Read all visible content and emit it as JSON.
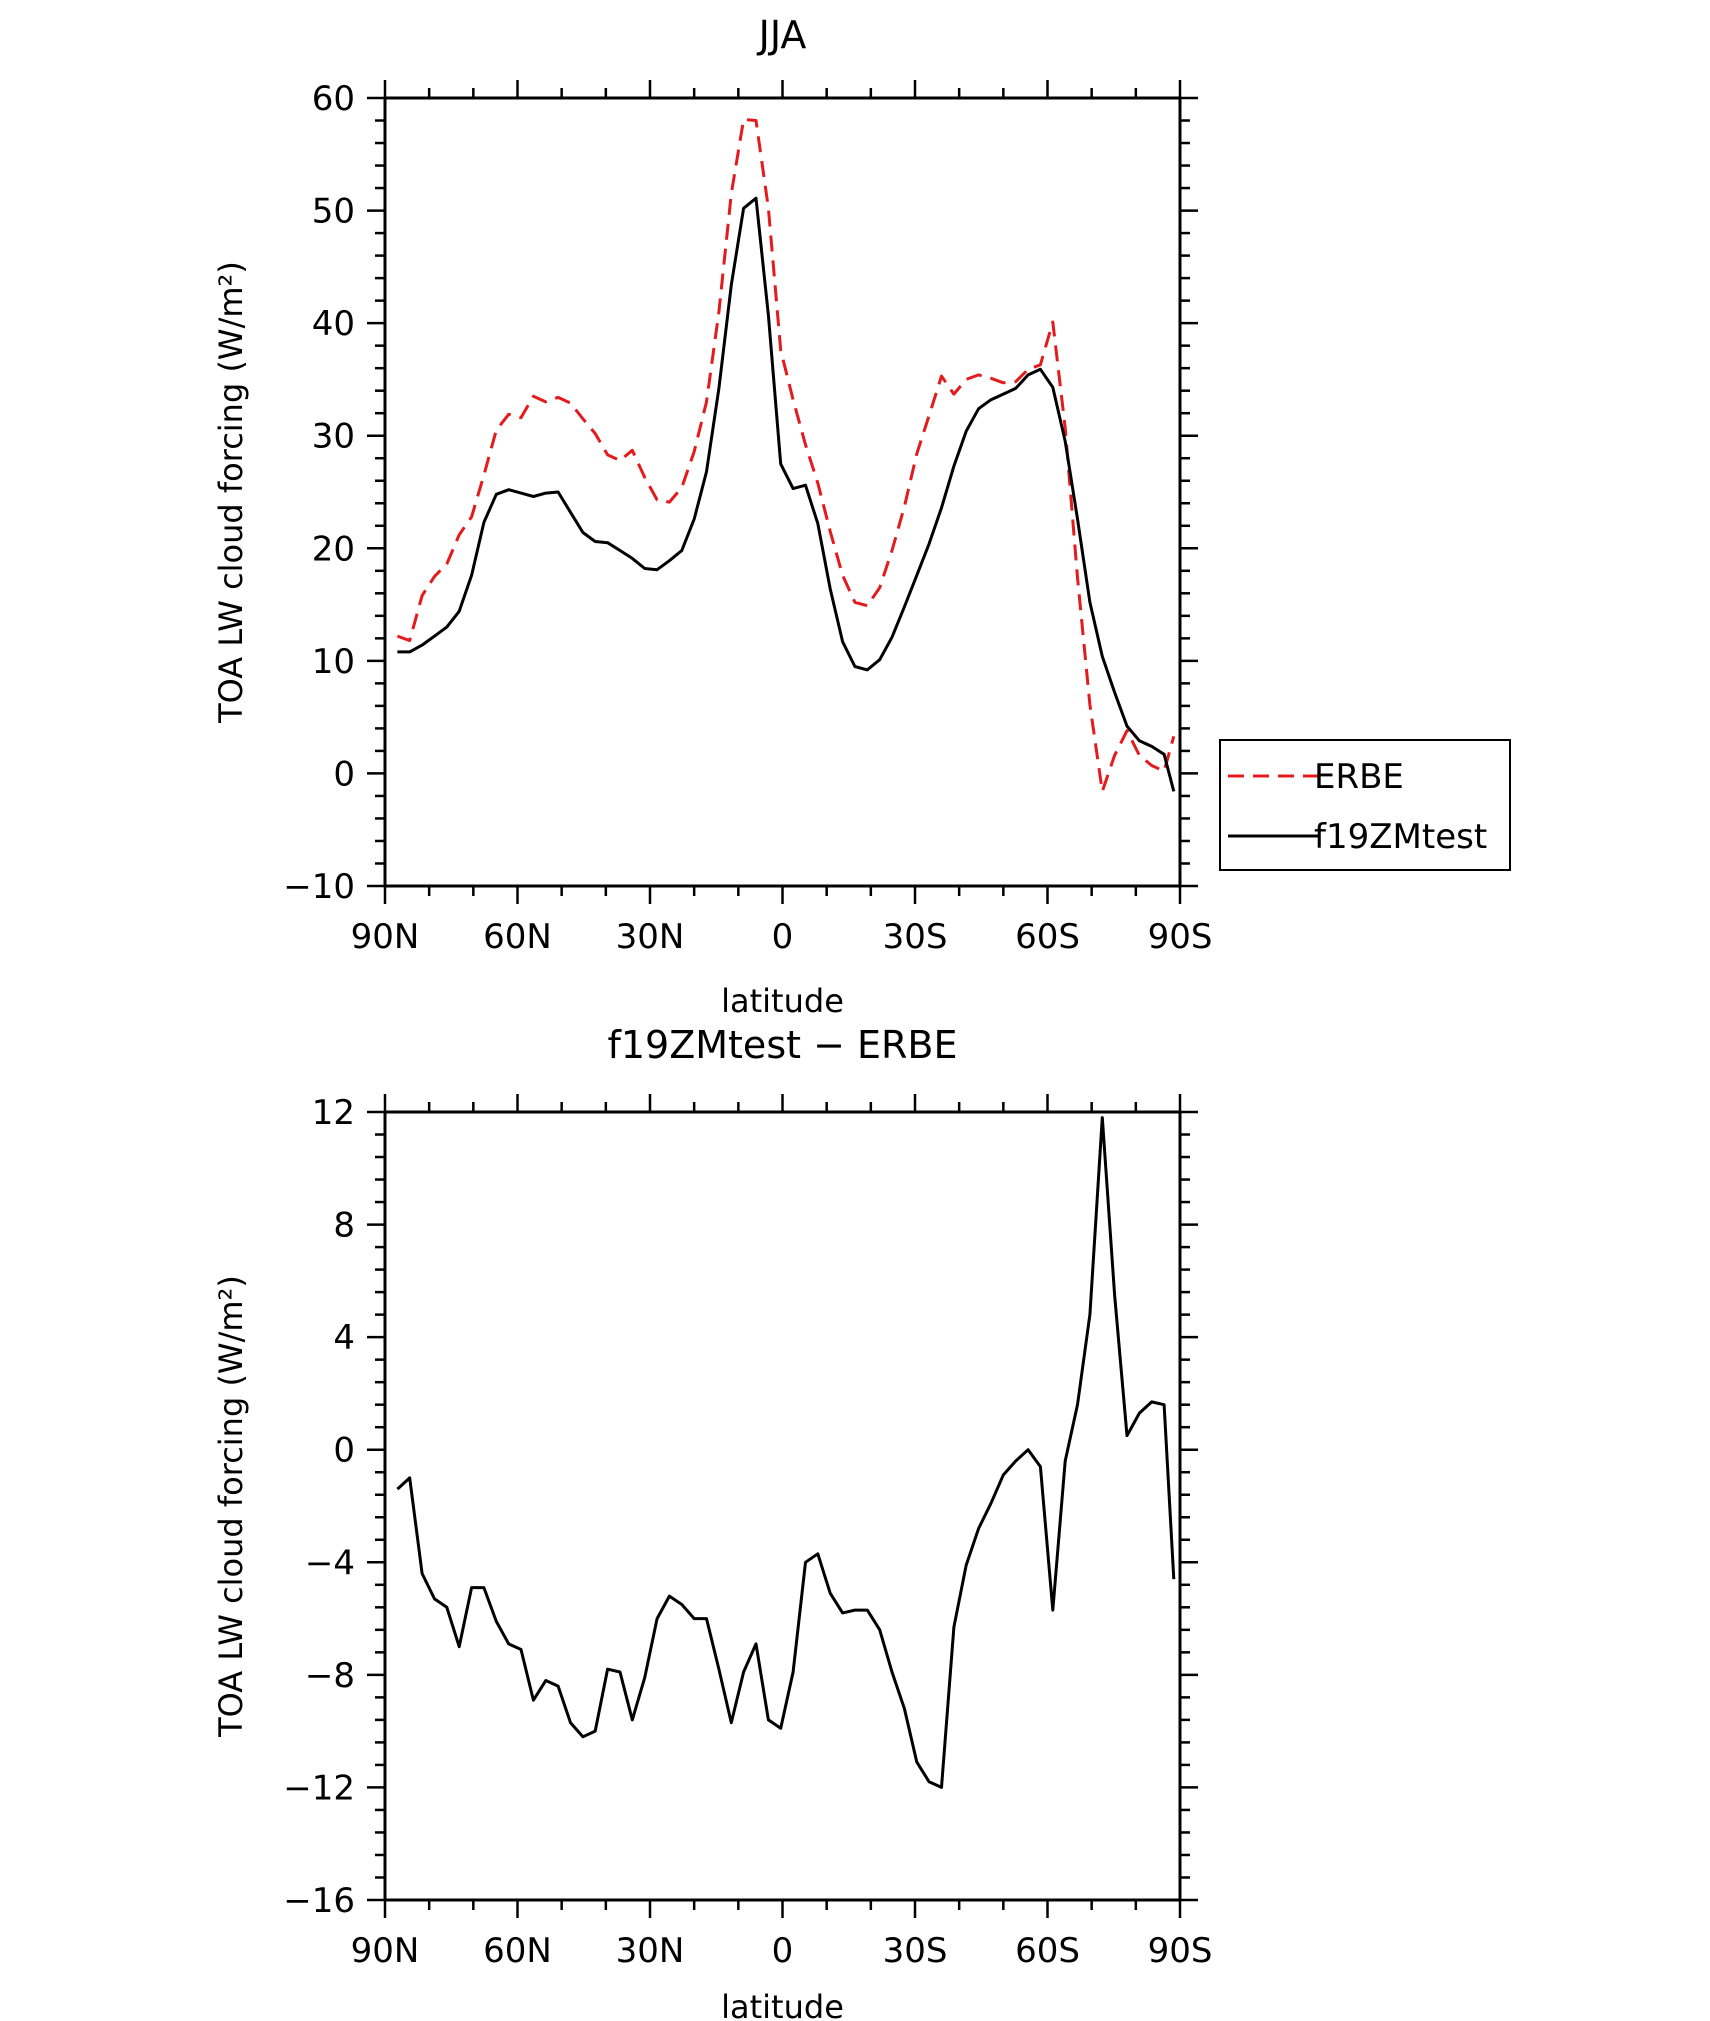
{
  "chart_data": [
    {
      "type": "line",
      "title": "JJA",
      "xlabel": "latitude",
      "ylabel": "TOA LW cloud forcing (W/m²)",
      "xlim": [
        -90,
        90
      ],
      "ylim": [
        -10,
        60
      ],
      "xticks": [
        -90,
        -60,
        -30,
        0,
        30,
        60,
        90
      ],
      "xtick_labels": [
        "90N",
        "60N",
        "30N",
        "0",
        "30S",
        "60S",
        "90S"
      ],
      "yticks": [
        -10,
        0,
        10,
        20,
        30,
        40,
        50,
        60
      ],
      "ytick_labels": [
        "−10",
        "0",
        "10",
        "20",
        "30",
        "40",
        "50",
        "60"
      ],
      "legend": "right",
      "series": [
        {
          "name": "ERBE",
          "color": "#e41a1c",
          "dash": "dashed",
          "x": [
            -87.2,
            -84.4,
            -81.6,
            -78.8,
            -76.0,
            -73.2,
            -70.4,
            -67.6,
            -64.8,
            -62.0,
            -59.2,
            -56.4,
            -53.6,
            -50.8,
            -48.0,
            -45.2,
            -42.4,
            -39.6,
            -36.8,
            -34.0,
            -31.2,
            -28.4,
            -25.6,
            -22.8,
            -20.0,
            -17.2,
            -14.4,
            -11.6,
            -8.8,
            -6.0,
            -3.2,
            -0.4,
            2.4,
            5.2,
            8.0,
            10.8,
            13.6,
            16.4,
            19.2,
            22.0,
            24.8,
            27.6,
            30.4,
            33.2,
            36.0,
            38.8,
            41.6,
            44.4,
            47.2,
            50.0,
            52.8,
            55.6,
            58.4,
            61.2,
            64.0,
            66.8,
            69.6,
            72.4,
            75.2,
            78.0,
            80.8,
            83.6,
            86.4,
            88.6
          ],
          "y": [
            12.2,
            11.8,
            15.8,
            17.5,
            18.6,
            21.2,
            22.8,
            26.5,
            30.5,
            31.9,
            31.6,
            33.5,
            33.0,
            33.4,
            32.9,
            31.5,
            30.2,
            28.3,
            27.8,
            28.7,
            26.3,
            24.3,
            24.1,
            25.4,
            28.6,
            33.0,
            41.0,
            51.5,
            58.1,
            58.0,
            50.2,
            37.6,
            33.2,
            29.2,
            25.8,
            21.5,
            17.6,
            15.2,
            14.9,
            16.5,
            19.8,
            23.7,
            28.4,
            31.8,
            35.3,
            33.7,
            35.0,
            35.4,
            35.1,
            34.7,
            34.8,
            35.9,
            36.3,
            40.1,
            30.7,
            17.4,
            6.1,
            -1.6,
            1.6,
            3.8,
            1.6,
            0.7,
            0.2,
            3.3
          ]
        },
        {
          "name": "f19ZMtest",
          "color": "#000000",
          "dash": "solid",
          "x": [
            -87.2,
            -84.4,
            -81.6,
            -78.8,
            -76.0,
            -73.2,
            -70.4,
            -67.6,
            -64.8,
            -62.0,
            -59.2,
            -56.4,
            -53.6,
            -50.8,
            -48.0,
            -45.2,
            -42.4,
            -39.6,
            -36.8,
            -34.0,
            -31.2,
            -28.4,
            -25.6,
            -22.8,
            -20.0,
            -17.2,
            -14.4,
            -11.6,
            -8.8,
            -6.0,
            -3.2,
            -0.4,
            2.4,
            5.2,
            8.0,
            10.8,
            13.6,
            16.4,
            19.2,
            22.0,
            24.8,
            27.6,
            30.4,
            33.2,
            36.0,
            38.8,
            41.6,
            44.4,
            47.2,
            50.0,
            52.8,
            55.6,
            58.4,
            61.2,
            64.0,
            66.8,
            69.6,
            72.4,
            75.2,
            78.0,
            80.8,
            83.6,
            86.4,
            88.6
          ],
          "y": [
            10.8,
            10.8,
            11.4,
            12.2,
            13.0,
            14.4,
            17.6,
            22.3,
            24.8,
            25.2,
            24.9,
            24.6,
            24.9,
            25.0,
            23.2,
            21.4,
            20.6,
            20.5,
            19.8,
            19.1,
            18.2,
            18.1,
            18.9,
            19.8,
            22.6,
            26.8,
            34.2,
            43.4,
            50.2,
            51.1,
            40.7,
            27.5,
            25.3,
            25.6,
            22.2,
            16.4,
            11.7,
            9.5,
            9.2,
            10.1,
            12.1,
            14.8,
            17.6,
            20.4,
            23.6,
            27.3,
            30.4,
            32.4,
            33.2,
            33.7,
            34.2,
            35.4,
            35.9,
            34.3,
            29.5,
            22.6,
            15.2,
            10.4,
            7.2,
            4.2,
            2.9,
            2.4,
            1.7,
            -1.6
          ]
        }
      ]
    },
    {
      "type": "line",
      "title": "f19ZMtest − ERBE",
      "xlabel": "latitude",
      "ylabel": "TOA LW cloud forcing (W/m²)",
      "xlim": [
        -90,
        90
      ],
      "ylim": [
        -16,
        12
      ],
      "xticks": [
        -90,
        -60,
        -30,
        0,
        30,
        60,
        90
      ],
      "xtick_labels": [
        "90N",
        "60N",
        "30N",
        "0",
        "30S",
        "60S",
        "90S"
      ],
      "yticks": [
        -16,
        -12,
        -8,
        -4,
        0,
        4,
        8,
        12
      ],
      "ytick_labels": [
        "−16",
        "−12",
        "−8",
        "−4",
        "0",
        "4",
        "8",
        "12"
      ],
      "series": [
        {
          "color": "#000000",
          "dash": "solid",
          "x": [
            -87.2,
            -84.4,
            -81.6,
            -78.8,
            -76.0,
            -73.2,
            -70.4,
            -67.6,
            -64.8,
            -62.0,
            -59.2,
            -56.4,
            -53.6,
            -50.8,
            -48.0,
            -45.2,
            -42.4,
            -39.6,
            -36.8,
            -34.0,
            -31.2,
            -28.4,
            -25.6,
            -22.8,
            -20.0,
            -17.2,
            -14.4,
            -11.6,
            -8.8,
            -6.0,
            -3.2,
            -0.4,
            2.4,
            5.2,
            8.0,
            10.8,
            13.6,
            16.4,
            19.2,
            22.0,
            24.8,
            27.6,
            30.4,
            33.2,
            36.0,
            38.8,
            41.6,
            44.4,
            47.2,
            50.0,
            52.8,
            55.6,
            58.4,
            61.2,
            64.0,
            66.8,
            69.6,
            72.4,
            75.2,
            78.0,
            80.8,
            83.6,
            86.4,
            88.6
          ],
          "y": [
            -1.4,
            -1.0,
            -4.4,
            -5.3,
            -5.6,
            -7.0,
            -4.9,
            -4.9,
            -6.1,
            -6.9,
            -7.1,
            -8.9,
            -8.2,
            -8.4,
            -9.7,
            -10.2,
            -10.0,
            -7.8,
            -7.9,
            -9.6,
            -8.1,
            -6.0,
            -5.2,
            -5.5,
            -6.0,
            -6.0,
            -7.8,
            -9.7,
            -7.9,
            -6.9,
            -9.6,
            -9.9,
            -7.9,
            -4.0,
            -3.7,
            -5.1,
            -5.8,
            -5.7,
            -5.7,
            -6.4,
            -7.9,
            -9.2,
            -11.1,
            -11.8,
            -12.0,
            -6.3,
            -4.1,
            -2.8,
            -1.9,
            -0.9,
            -0.4,
            0.0,
            -0.6,
            -5.7,
            -0.4,
            1.6,
            4.8,
            11.8,
            5.5,
            0.5,
            1.3,
            1.7,
            1.6,
            -4.6
          ]
        }
      ]
    }
  ]
}
